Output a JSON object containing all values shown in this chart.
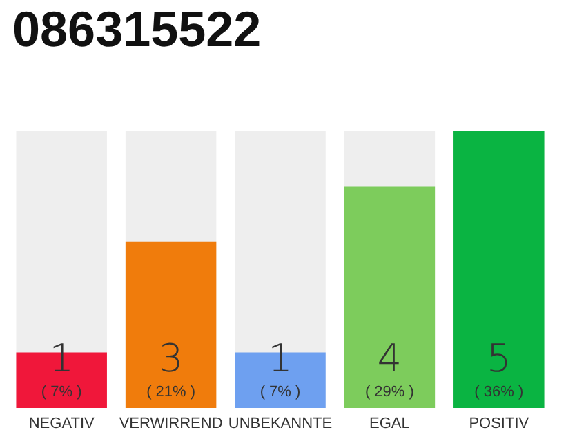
{
  "chart_data": {
    "type": "bar",
    "title": "086315522",
    "categories": [
      "NEGATIV",
      "VERWIRREND",
      "UNBEKANNTE",
      "EGAL",
      "POSITIV"
    ],
    "values": [
      1,
      3,
      1,
      4,
      5
    ],
    "colors": [
      "#f0173a",
      "#f07c0c",
      "#6ea0f0",
      "#7dcc5c",
      "#0ab442"
    ],
    "data_labels": true,
    "tick_labels": "x",
    "annotations": [
      "( 7% )",
      "( 21% )",
      "( 7% )",
      "( 29% )",
      "( 36% )"
    ]
  }
}
